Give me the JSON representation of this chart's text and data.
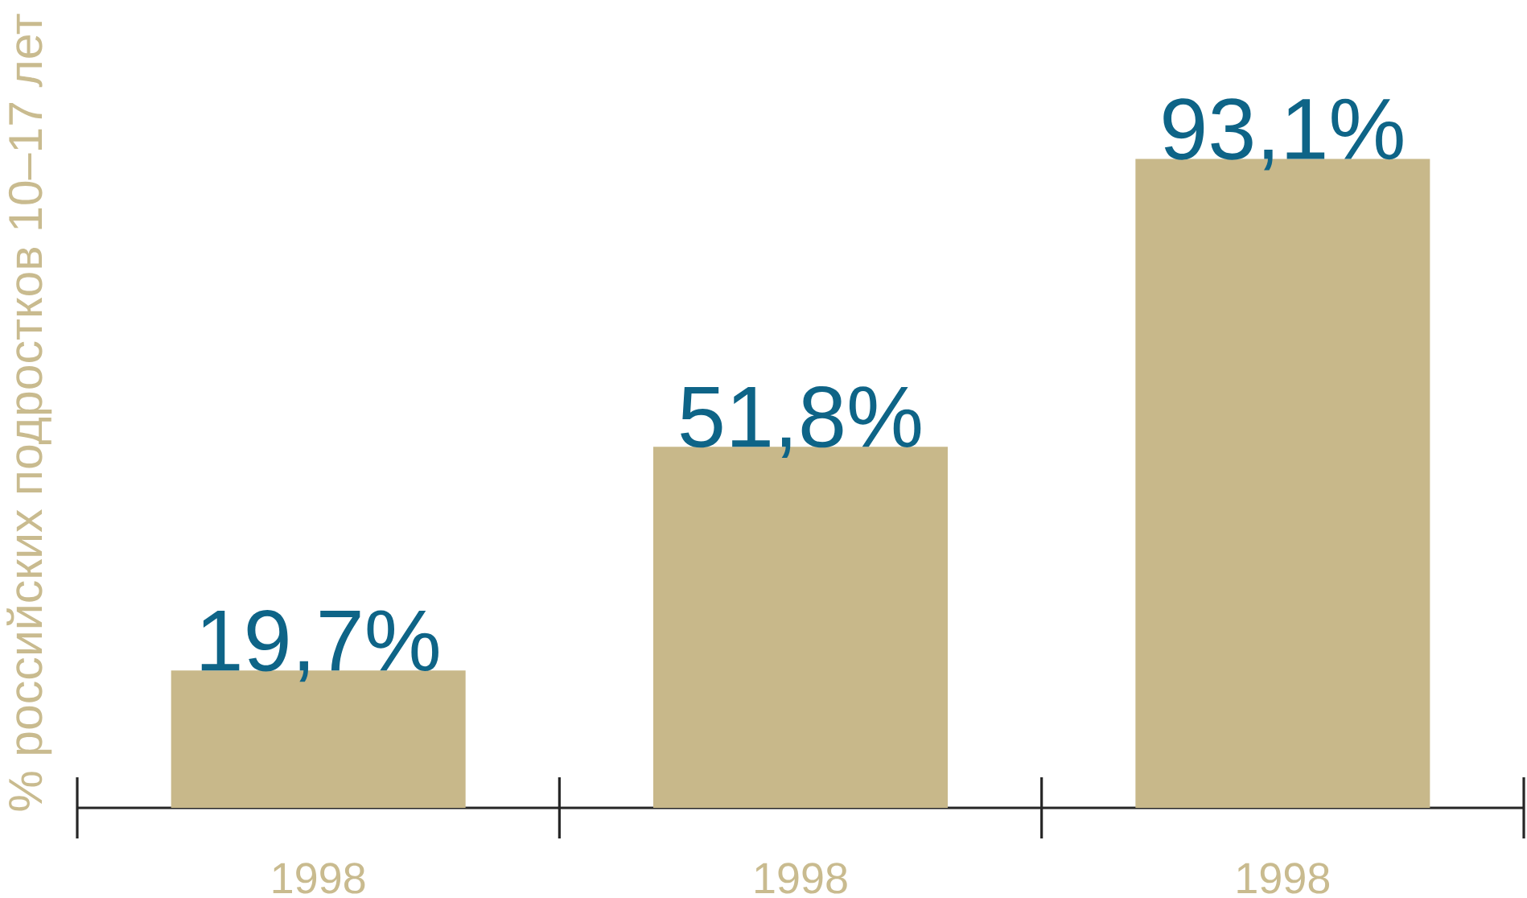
{
  "chart_data": {
    "type": "bar",
    "ylabel": "% российских подростков 10–17 лет",
    "categories": [
      "1998",
      "1998",
      "1998"
    ],
    "values": [
      19.7,
      51.8,
      93.1
    ],
    "value_labels": [
      "19,7%",
      "51,8%",
      "93,1%"
    ],
    "color": "#c8b88a"
  }
}
